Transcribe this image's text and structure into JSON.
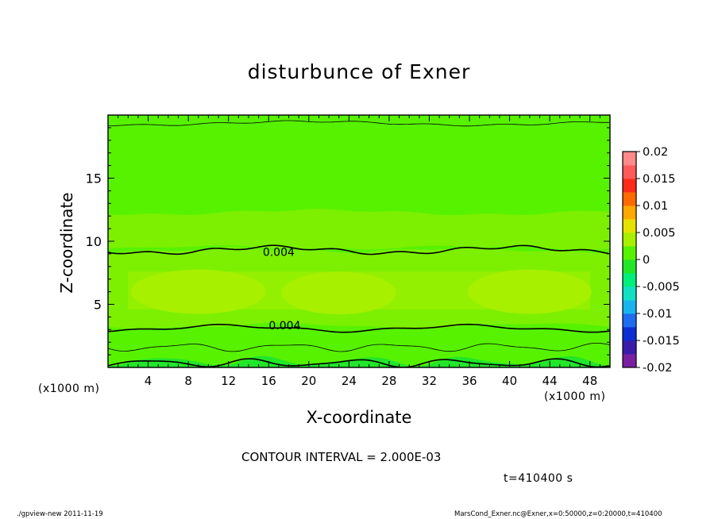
{
  "chart_data": {
    "type": "contour",
    "title": "disturbunce of Exner",
    "xlabel": "X-coordinate",
    "ylabel": "Z-coordinate",
    "x_unit_label": "(x1000 m)",
    "xlim": [
      0,
      50
    ],
    "ylim": [
      0,
      20
    ],
    "x_ticks": [
      4,
      8,
      12,
      16,
      20,
      24,
      28,
      32,
      36,
      40,
      44,
      48
    ],
    "y_ticks": [
      5,
      10,
      15
    ],
    "contour_interval_text": "CONTOUR INTERVAL = 2.000E-03",
    "contour_labels": [
      {
        "text": "0.004",
        "x": 17.0,
        "z": 9.2
      },
      {
        "text": "0.004",
        "x": 17.6,
        "z": 3.4
      }
    ],
    "colorbar": {
      "ticks": [
        "0.02",
        "0.015",
        "0.01",
        "0.005",
        "0",
        "-0.005",
        "-0.01",
        "-0.015",
        "-0.02"
      ],
      "range": [
        -0.02,
        0.02
      ],
      "colors": [
        "#7a1fa2",
        "#3a1cab",
        "#0b2ed2",
        "#1f6cf0",
        "#18b4ee",
        "#12e0c4",
        "#00ee7a",
        "#22e62a",
        "#57f200",
        "#a6f000",
        "#e6e200",
        "#ffa800",
        "#ff6a00",
        "#ff2a1a",
        "#ff5a5a",
        "#ff8a8a"
      ]
    },
    "fill_levels": [
      {
        "level": "0.000 to 0.002",
        "color": "#57f200"
      },
      {
        "level": "0.002 to 0.004",
        "color": "#7cf000"
      },
      {
        "level": "0.004 to 0.006",
        "color": "#a6f000"
      },
      {
        "level": "-0.002 to 0.000",
        "color": "#22e62a"
      }
    ]
  },
  "annotations": {
    "time": "t=410400 s",
    "footer_left": "./gpview-new   2011-11-19",
    "footer_right": "MarsCond_Exner.nc@Exner,x=0:50000,z=0:20000,t=410400"
  }
}
